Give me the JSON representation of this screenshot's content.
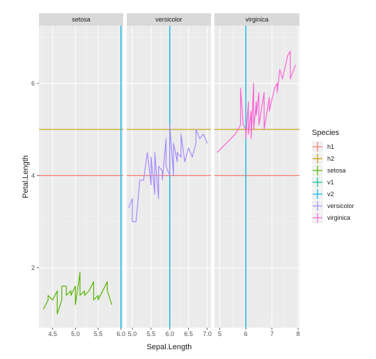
{
  "chart_data": {
    "type": "line",
    "xlabel": "Sepal.Length",
    "ylabel": "Petal.Length",
    "ylim": [
      0.7,
      7.25
    ],
    "yticks": [
      2,
      4,
      6
    ],
    "grid": true,
    "legend": {
      "title": "Species",
      "placement": "right",
      "entries": [
        "h1",
        "h2",
        "setosa",
        "v1",
        "v2",
        "versicolor",
        "virginica"
      ]
    },
    "colors": {
      "h1": "#F8766D",
      "h2": "#C49A00",
      "setosa": "#53B400",
      "v1": "#00C094",
      "v2": "#00B6EB",
      "versicolor": "#A58AFF",
      "virginica": "#FB61D7"
    },
    "reference_lines": {
      "h1": 4,
      "h2": 5,
      "v1": 6,
      "v2": 6
    },
    "panels": [
      {
        "label": "setosa",
        "xlim": [
          4.2,
          6.05
        ],
        "xticks": [
          4.5,
          5.0,
          5.5,
          6.0
        ],
        "xtick_labels": [
          "4.5",
          "5.0",
          "5.5",
          "6.0"
        ],
        "series": [
          {
            "name": "setosa",
            "x": [
              4.3,
              4.4,
              4.4,
              4.5,
              4.6,
              4.6,
              4.7,
              4.7,
              4.8,
              4.8,
              4.9,
              4.9,
              5.0,
              5.0,
              5.1,
              5.1,
              5.2,
              5.2,
              5.3,
              5.4,
              5.4,
              5.5,
              5.5,
              5.7,
              5.7,
              5.8
            ],
            "y": [
              1.1,
              1.3,
              1.4,
              1.3,
              1.5,
              1.0,
              1.3,
              1.6,
              1.6,
              1.4,
              1.5,
              1.4,
              1.6,
              1.2,
              1.9,
              1.4,
              1.5,
              1.4,
              1.5,
              1.7,
              1.3,
              1.4,
              1.3,
              1.7,
              1.5,
              1.2
            ]
          }
        ]
      },
      {
        "label": "versicolor",
        "xlim": [
          4.85,
          7.1
        ],
        "xticks": [
          5.0,
          5.5,
          6.0,
          6.5,
          7.0
        ],
        "xtick_labels": [
          "5.0",
          "5.5",
          "6.0",
          "6.5",
          "7.0"
        ],
        "series": [
          {
            "name": "versicolor",
            "x": [
              4.9,
              5.0,
              5.0,
              5.1,
              5.2,
              5.3,
              5.4,
              5.5,
              5.5,
              5.6,
              5.6,
              5.7,
              5.7,
              5.8,
              5.8,
              5.9,
              5.9,
              6.0,
              6.0,
              6.1,
              6.1,
              6.2,
              6.2,
              6.3,
              6.3,
              6.4,
              6.5,
              6.6,
              6.7,
              6.7,
              6.8,
              6.9,
              7.0
            ],
            "y": [
              3.3,
              3.5,
              3.0,
              3.0,
              3.9,
              3.9,
              4.5,
              3.8,
              4.4,
              3.6,
              4.5,
              3.5,
              4.2,
              4.1,
              3.9,
              4.8,
              4.2,
              4.0,
              5.1,
              4.0,
              4.7,
              4.3,
              4.5,
              4.4,
              4.9,
              4.3,
              4.6,
              4.4,
              4.7,
              5.0,
              4.8,
              4.9,
              4.7
            ]
          }
        ]
      },
      {
        "label": "virginica",
        "xlim": [
          4.8,
          8.05
        ],
        "xticks": [
          5,
          6,
          7,
          8
        ],
        "xtick_labels": [
          "5",
          "6",
          "7",
          "8"
        ],
        "series": [
          {
            "name": "virginica",
            "x": [
              4.9,
              5.6,
              5.7,
              5.8,
              5.8,
              5.9,
              6.0,
              6.0,
              6.1,
              6.1,
              6.2,
              6.2,
              6.3,
              6.3,
              6.4,
              6.4,
              6.5,
              6.5,
              6.7,
              6.7,
              6.9,
              6.9,
              7.1,
              7.2,
              7.2,
              7.3,
              7.4,
              7.6,
              7.7,
              7.7,
              7.9
            ],
            "y": [
              4.5,
              4.9,
              5.0,
              5.1,
              5.9,
              5.1,
              5.0,
              4.8,
              5.6,
              4.9,
              5.4,
              4.8,
              6.0,
              5.0,
              5.6,
              5.3,
              5.8,
              5.1,
              5.8,
              5.0,
              5.7,
              5.4,
              5.9,
              6.0,
              5.8,
              6.3,
              6.1,
              6.6,
              6.7,
              6.1,
              6.4
            ]
          }
        ]
      }
    ]
  }
}
